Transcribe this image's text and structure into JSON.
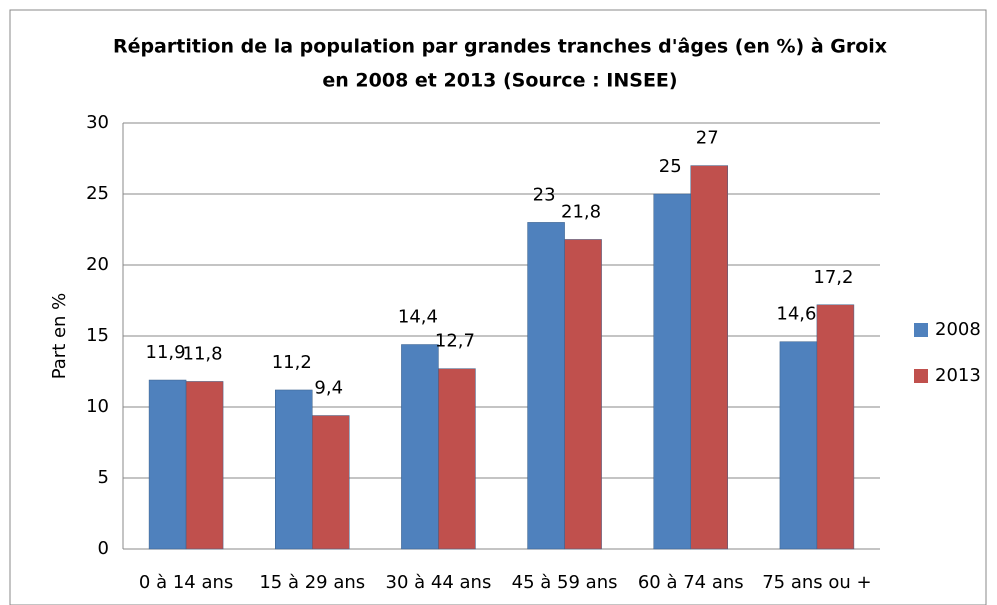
{
  "chart_data": {
    "type": "bar",
    "title": [
      "Répartition de la population par grandes tranches d'âges (en %) à Groix",
      "en 2008 et 2013 (Source : INSEE)"
    ],
    "y_label": "Part en %",
    "categories": [
      "0 à 14 ans",
      "15 à 29 ans",
      "30 à 44 ans",
      "45 à 59 ans",
      "60 à 74 ans",
      "75 ans ou +"
    ],
    "series": [
      {
        "name": "2008",
        "color": "#4f81bd",
        "values": [
          11.9,
          11.2,
          14.4,
          23,
          25,
          14.6
        ],
        "value_labels": [
          "11,9",
          "11,2",
          "14,4",
          "23",
          "25",
          "14,6"
        ]
      },
      {
        "name": "2013",
        "color": "#c0504d",
        "values": [
          11.8,
          9.4,
          12.7,
          21.8,
          27,
          17.2
        ],
        "value_labels": [
          "11,8",
          "9,4",
          "12,7",
          "21,8",
          "27",
          "17,2"
        ]
      }
    ],
    "ylim": [
      0,
      30
    ],
    "yticks": [
      0,
      5,
      10,
      15,
      20,
      25,
      30
    ],
    "grid": true,
    "legend": "right"
  }
}
